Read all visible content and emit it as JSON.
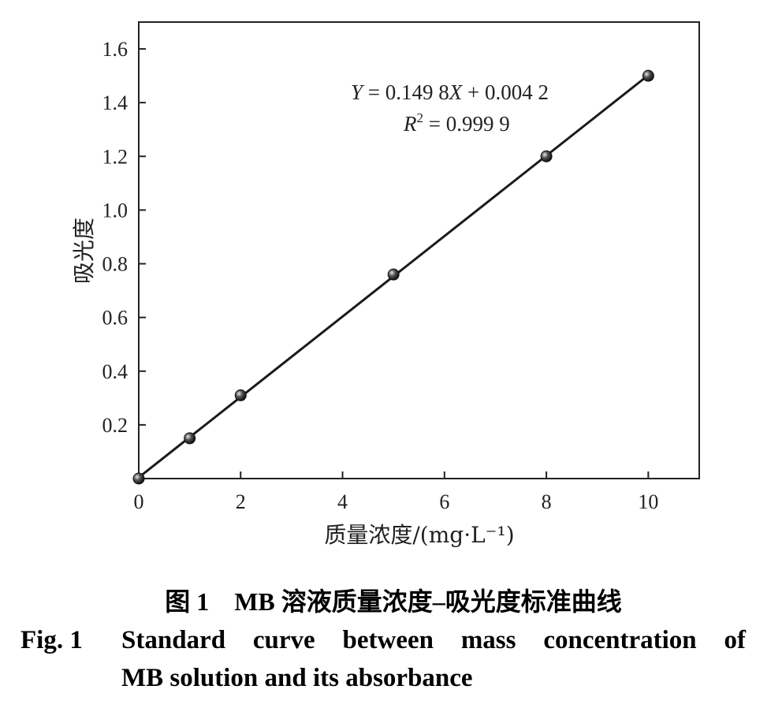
{
  "chart_data": {
    "type": "scatter",
    "xlabel": "质量浓度/(mg·L⁻¹)",
    "ylabel": "吸光度",
    "xlim": [
      0,
      11
    ],
    "ylim": [
      0,
      1.7
    ],
    "x_ticks": [
      "0",
      "2",
      "4",
      "6",
      "8",
      "10"
    ],
    "y_ticks": [
      "0.2",
      "0.4",
      "0.6",
      "0.8",
      "1.0",
      "1.2",
      "1.4",
      "1.6"
    ],
    "series": [
      {
        "x": [
          0,
          1,
          2,
          5,
          8,
          10
        ],
        "y": [
          0.0,
          0.15,
          0.31,
          0.76,
          1.2,
          1.5
        ],
        "fit": {
          "slope": 0.1498,
          "intercept": 0.0042
        }
      }
    ],
    "annotations": {
      "equation_y": "Y",
      "equation_mid": " = 0.149 8",
      "equation_x": "X",
      "equation_rest": " + 0.004 2",
      "r2_r": "R",
      "r2_sup": "2",
      "r2_rest": " = 0.999 9"
    },
    "grid": false,
    "legend": "none",
    "colors": {
      "line": "#1a1a1a",
      "marker": "#2a2a2a"
    }
  },
  "caption": {
    "cn_label": "图 1",
    "cn_text": "MB 溶液质量浓度–吸光度标准曲线",
    "en_label": "Fig. 1",
    "en_line1_words": [
      "Standard",
      "curve",
      "between",
      "mass",
      "concentration",
      "of"
    ],
    "en_line2": "MB solution and its absorbance"
  }
}
